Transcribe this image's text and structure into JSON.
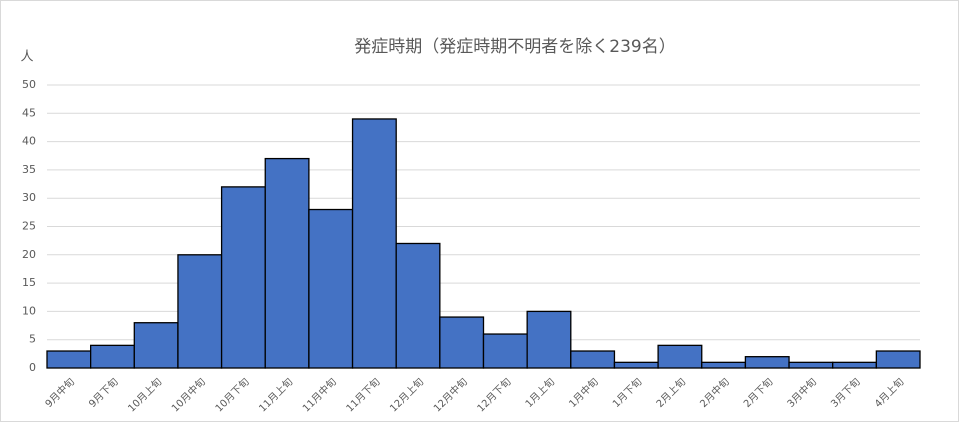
{
  "chart_data": {
    "type": "bar",
    "title": "発症時期（発症時期不明者を除く239名）",
    "y_label": "人",
    "categories": [
      "9月中旬",
      "9月下旬",
      "10月上旬",
      "10月中旬",
      "10月下旬",
      "11月上旬",
      "11月中旬",
      "11月下旬",
      "12月上旬",
      "12月中旬",
      "12月下旬",
      "1月上旬",
      "1月中旬",
      "1月下旬",
      "2月上旬",
      "2月中旬",
      "2月下旬",
      "3月中旬",
      "3月下旬",
      "4月上旬"
    ],
    "values": [
      3,
      4,
      8,
      20,
      32,
      37,
      28,
      44,
      22,
      9,
      6,
      10,
      3,
      1,
      4,
      1,
      2,
      1,
      1,
      3
    ],
    "color": "#4472c4",
    "ylim": [
      0,
      50
    ],
    "yticks": [
      0,
      5,
      10,
      15,
      20,
      25,
      30,
      35,
      40,
      45,
      50
    ],
    "grid": true
  }
}
